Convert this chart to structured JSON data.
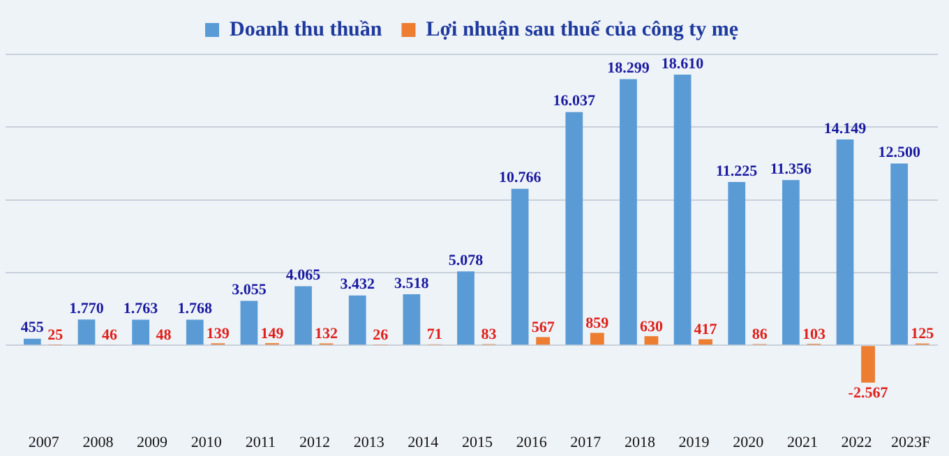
{
  "chart_data": {
    "type": "bar",
    "categories": [
      "2007",
      "2008",
      "2009",
      "2010",
      "2011",
      "2012",
      "2013",
      "2014",
      "2015",
      "2016",
      "2017",
      "2018",
      "2019",
      "2020",
      "2021",
      "2022",
      "2023F"
    ],
    "series": [
      {
        "name": "Doanh thu thuần",
        "color": "#5b9bd5",
        "values": [
          455,
          1770,
          1763,
          1768,
          3055,
          4065,
          3432,
          3518,
          5078,
          10766,
          16037,
          18299,
          18610,
          11225,
          11356,
          14149,
          12500
        ],
        "value_labels": [
          "455",
          "1.770",
          "1.763",
          "1.768",
          "3.055",
          "4.065",
          "3.432",
          "3.518",
          "5.078",
          "10.766",
          "16.037",
          "18.299",
          "18.610",
          "11.225",
          "11.356",
          "14.149",
          "12.500"
        ]
      },
      {
        "name": "Lợi nhuận sau thuế của công ty mẹ",
        "color": "#ed7d31",
        "values": [
          25,
          46,
          48,
          139,
          149,
          132,
          26,
          71,
          83,
          567,
          859,
          630,
          417,
          86,
          103,
          -2567,
          125
        ],
        "value_labels": [
          "25",
          "46",
          "48",
          "139",
          "149",
          "132",
          "26",
          "71",
          "83",
          "567",
          "859",
          "630",
          "417",
          "86",
          "103",
          "-2.567",
          "125"
        ]
      }
    ],
    "yticks": [
      {
        "value": 0,
        "label": null
      },
      {
        "value": 5000,
        "label": null
      },
      {
        "value": 10000,
        "label": null
      },
      {
        "value": 15000,
        "label": null
      },
      {
        "value": 20000,
        "label": null
      }
    ],
    "tick_labels": "x",
    "grid": "y",
    "legend": "top"
  }
}
